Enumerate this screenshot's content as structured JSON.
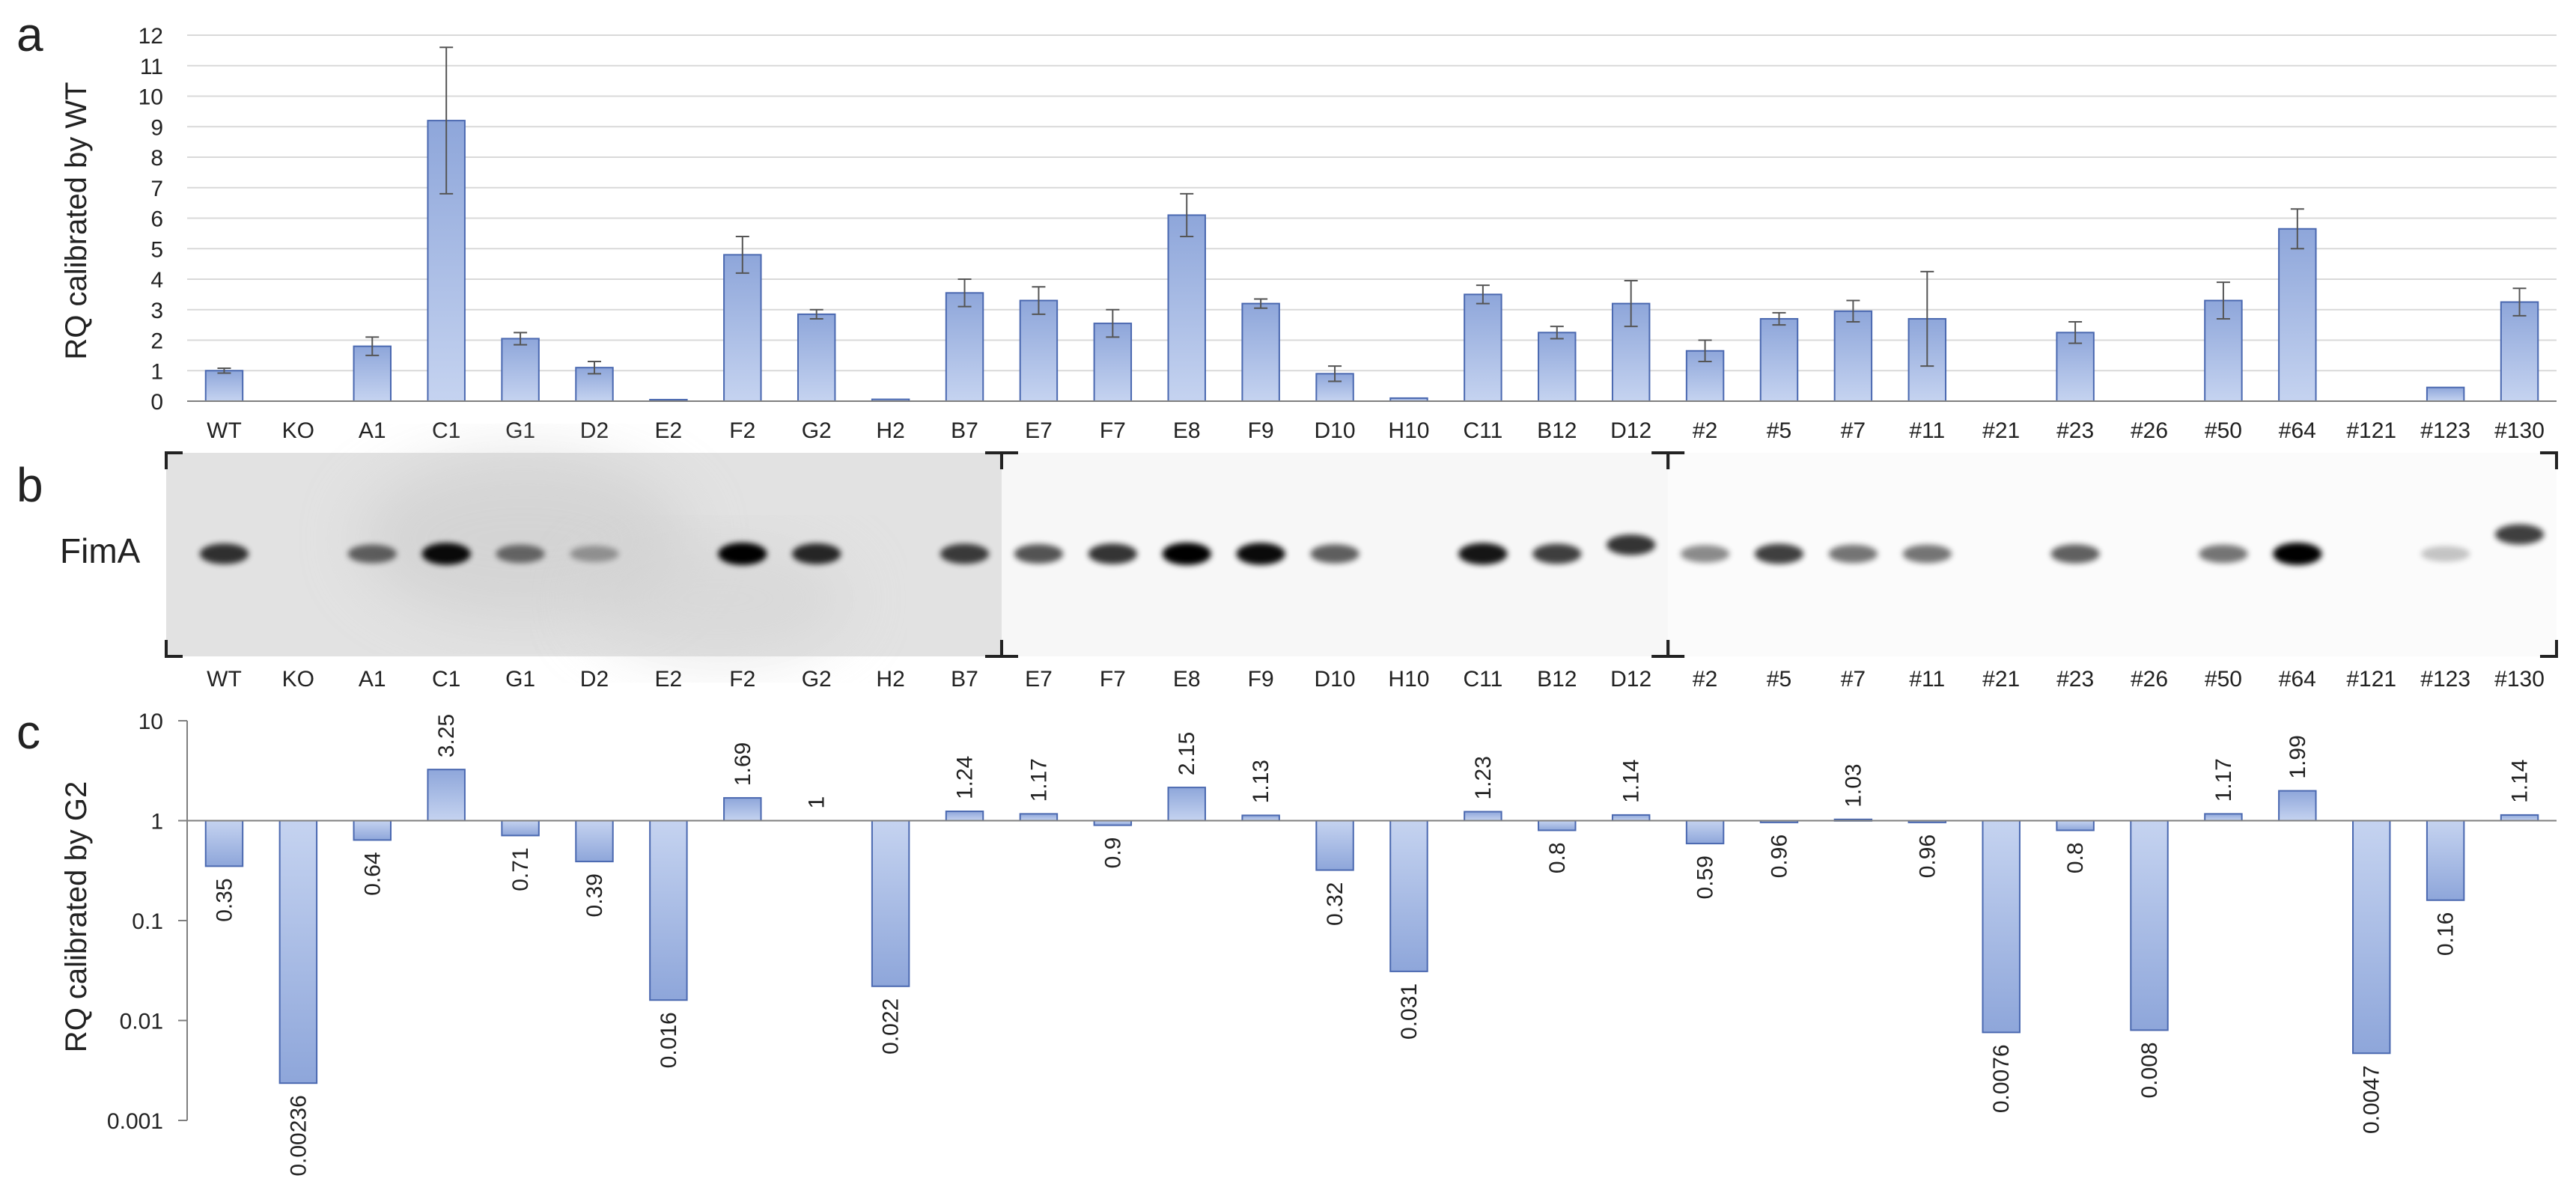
{
  "panels": {
    "a": {
      "letter": "a"
    },
    "b": {
      "letter": "b",
      "band_label": "FimA"
    },
    "c": {
      "letter": "c"
    }
  },
  "colors": {
    "bar_fill": "#a5b9e3",
    "bar_top": "#b7c8ec",
    "bar_stroke": "#4a68b0",
    "axis": "#7f7f7f",
    "grid": "#d9d9d9",
    "text": "#222222",
    "errorbar": "#555555"
  },
  "chart_data": [
    {
      "type": "bar",
      "panel": "a",
      "ylabel": "RQ calibrated by WT",
      "ylim": [
        0,
        12
      ],
      "yticks": [
        0,
        1,
        2,
        3,
        4,
        5,
        6,
        7,
        8,
        9,
        10,
        11,
        12
      ],
      "grid": true,
      "categories": [
        "WT",
        "KO",
        "A1",
        "C1",
        "G1",
        "D2",
        "E2",
        "F2",
        "G2",
        "H2",
        "B7",
        "E7",
        "F7",
        "E8",
        "F9",
        "D10",
        "H10",
        "C11",
        "B12",
        "D12",
        "#2",
        "#5",
        "#7",
        "#11",
        "#21",
        "#23",
        "#26",
        "#50",
        "#64",
        "#121",
        "#123",
        "#130"
      ],
      "values": [
        1.0,
        0.0,
        1.8,
        9.2,
        2.05,
        1.1,
        0.05,
        4.8,
        2.85,
        0.06,
        3.55,
        3.3,
        2.55,
        6.1,
        3.2,
        0.9,
        0.1,
        3.5,
        2.25,
        3.2,
        1.65,
        2.7,
        2.95,
        2.7,
        0.0,
        2.25,
        0.0,
        3.3,
        5.65,
        0.0,
        0.45,
        3.25
      ],
      "errors": [
        0.08,
        0.0,
        0.3,
        2.4,
        0.2,
        0.2,
        0.0,
        0.6,
        0.15,
        0.0,
        0.45,
        0.45,
        0.45,
        0.7,
        0.15,
        0.25,
        0.0,
        0.3,
        0.2,
        0.75,
        0.35,
        0.2,
        0.35,
        1.55,
        0.0,
        0.35,
        0.0,
        0.6,
        0.65,
        0.0,
        0.0,
        0.45
      ]
    },
    {
      "type": "bar",
      "panel": "c",
      "ylabel": "RQ calibrated by G2",
      "yscale": "log",
      "ylim": [
        0.001,
        10
      ],
      "baseline": 1,
      "yticks": [
        0.001,
        0.01,
        0.1,
        1,
        10
      ],
      "ytick_labels": [
        "0.001",
        "0.01",
        "0.1",
        "1",
        "10"
      ],
      "grid": false,
      "categories": [
        "WT",
        "KO",
        "A1",
        "C1",
        "G1",
        "D2",
        "E2",
        "F2",
        "G2",
        "H2",
        "B7",
        "E7",
        "F7",
        "E8",
        "F9",
        "D10",
        "H10",
        "C11",
        "B12",
        "D12",
        "#2",
        "#5",
        "#7",
        "#11",
        "#21",
        "#23",
        "#26",
        "#50",
        "#64",
        "#121",
        "#123",
        "#130"
      ],
      "values": [
        0.35,
        0.00236,
        0.64,
        3.25,
        0.71,
        0.39,
        0.016,
        1.69,
        1,
        0.022,
        1.24,
        1.17,
        0.9,
        2.15,
        1.13,
        0.32,
        0.031,
        1.23,
        0.8,
        1.14,
        0.59,
        0.96,
        1.03,
        0.96,
        0.0076,
        0.8,
        0.008,
        1.17,
        1.99,
        0.0047,
        0.16,
        1.14
      ],
      "data_labels": [
        "0.35",
        "0.00236",
        "0.64",
        "3.25",
        "0.71",
        "0.39",
        "0.016",
        "1.69",
        "1",
        "0.022",
        "1.24",
        "1.17",
        "0.9",
        "2.15",
        "1.13",
        "0.32",
        "0.031",
        "1.23",
        "0.8",
        "1.14",
        "0.59",
        "0.96",
        "1.03",
        "0.96",
        "0.0076",
        "0.8",
        "0.008",
        "1.17",
        "1.99",
        "0.0047",
        "0.16",
        "1.14"
      ]
    }
  ],
  "blot": {
    "panel": "b",
    "labels": [
      "WT",
      "KO",
      "A1",
      "C1",
      "G1",
      "D2",
      "E2",
      "F2",
      "G2",
      "H2",
      "B7",
      "E7",
      "F7",
      "E8",
      "F9",
      "D10",
      "H10",
      "C11",
      "B12",
      "D12",
      "#2",
      "#5",
      "#7",
      "#11",
      "#21",
      "#23",
      "#26",
      "#50",
      "#64",
      "#121",
      "#123",
      "#130"
    ],
    "band_intensity": [
      0.75,
      0.0,
      0.5,
      0.95,
      0.45,
      0.2,
      0.0,
      1.0,
      0.8,
      0.0,
      0.7,
      0.6,
      0.75,
      1.0,
      0.95,
      0.55,
      0.0,
      0.9,
      0.7,
      0.75,
      0.35,
      0.7,
      0.45,
      0.45,
      0.0,
      0.55,
      0.0,
      0.45,
      1.0,
      0.0,
      0.08,
      0.7
    ],
    "segments": [
      {
        "name": "blot-1",
        "background": "#e2e2e2",
        "lanes": 11
      },
      {
        "name": "blot-2",
        "background": "#f7f7f7",
        "lanes": 9
      },
      {
        "name": "blot-3",
        "background": "#fbfbfb",
        "lanes": 12
      }
    ]
  }
}
